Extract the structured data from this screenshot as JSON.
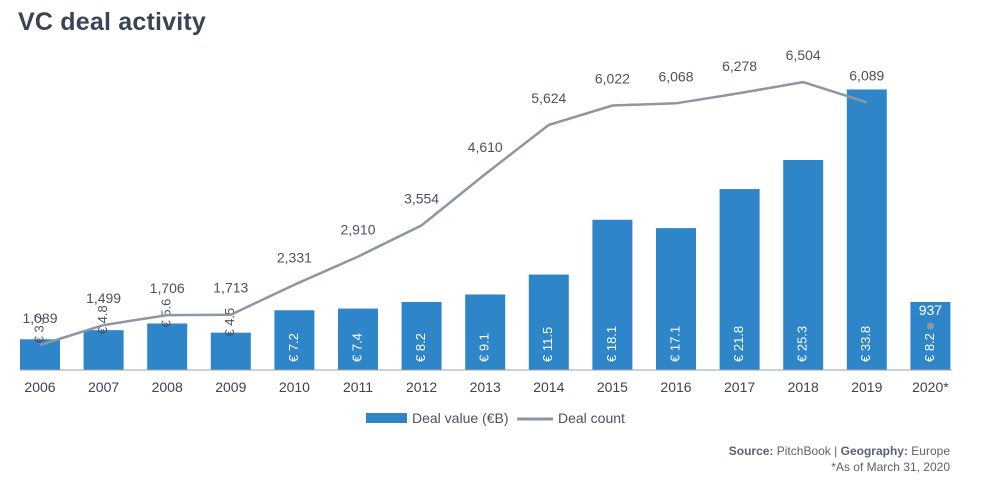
{
  "title": "VC deal activity",
  "source": {
    "source_label": "Source:",
    "source_value": "PitchBook",
    "separator": "|",
    "geo_label": "Geography:",
    "geo_value": "Europe",
    "footnote": "*As of March 31, 2020"
  },
  "legend": {
    "bar_label": "Deal value (€B)",
    "line_label": "Deal count"
  },
  "colors": {
    "bar": "#2e86c9",
    "line": "#8c96a4",
    "label_dark": "#4a5260",
    "label_light": "#ffffff"
  },
  "chart_data": {
    "type": "bar",
    "categories": [
      "2006",
      "2007",
      "2008",
      "2009",
      "2010",
      "2011",
      "2012",
      "2013",
      "2014",
      "2015",
      "2016",
      "2017",
      "2018",
      "2019",
      "2020*"
    ],
    "series": [
      {
        "name": "Deal value (€B)",
        "type": "bar",
        "values": [
          3.7,
          4.8,
          5.6,
          4.5,
          7.2,
          7.4,
          8.2,
          9.1,
          11.5,
          18.1,
          17.1,
          21.8,
          25.3,
          33.8,
          8.2
        ],
        "labels": [
          "€ 3.7",
          "€ 4.8",
          "€ 5.6",
          "€ 4.5",
          "€ 7.2",
          "€ 7.4",
          "€ 8.2",
          "€ 9.1",
          "€ 11.5",
          "€ 18.1",
          "€ 17.1",
          "€ 21.8",
          "€ 25.3",
          "€ 33.8",
          "€ 8.2"
        ]
      },
      {
        "name": "Deal count",
        "type": "line",
        "values": [
          1089,
          1499,
          1706,
          1713,
          2331,
          2910,
          3554,
          4610,
          5624,
          6022,
          6068,
          6278,
          6504,
          6089,
          937
        ],
        "labels": [
          "1,089",
          "1,499",
          "1,706",
          "1,713",
          "2,331",
          "2,910",
          "3,554",
          "4,610",
          "5,624",
          "6,022",
          "6,068",
          "6,278",
          "6,504",
          "6,089",
          "937"
        ]
      }
    ],
    "line_points_plotted": 14,
    "legend_position": "bottom",
    "grid": false
  }
}
